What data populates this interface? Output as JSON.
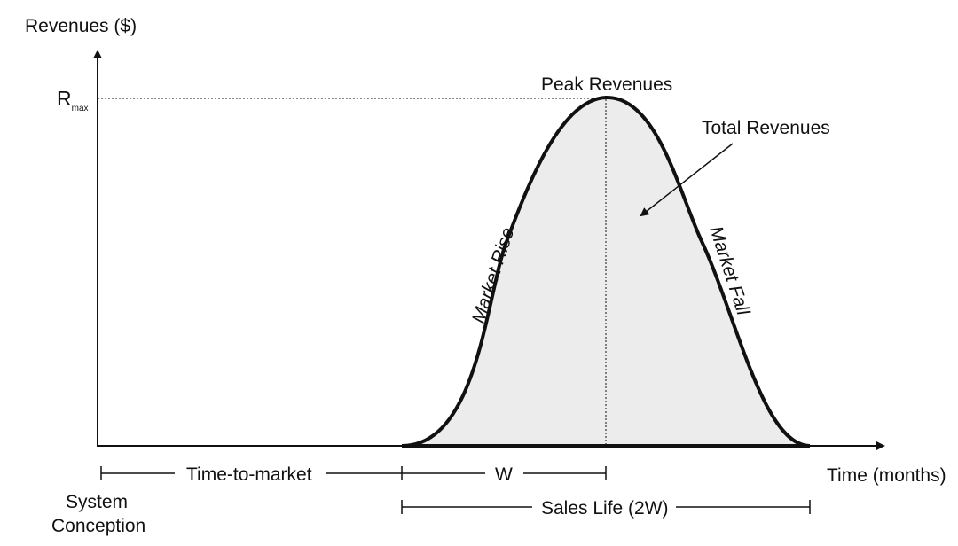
{
  "axes": {
    "y_label": "Revenues ($)",
    "x_label": "Time (months)",
    "rmax_main": "R",
    "rmax_sub": "max"
  },
  "annotations": {
    "peak": "Peak Revenues",
    "total": "Total Revenues",
    "rise": "Market Rise",
    "fall": "Market Fall"
  },
  "timeline": {
    "time_to_market": "Time-to-market",
    "w": "W",
    "sales_life": "Sales Life (2W)",
    "system_line1": "System",
    "system_line2": "Conception"
  },
  "colors": {
    "line": "#111111",
    "fill": "#ececec"
  }
}
